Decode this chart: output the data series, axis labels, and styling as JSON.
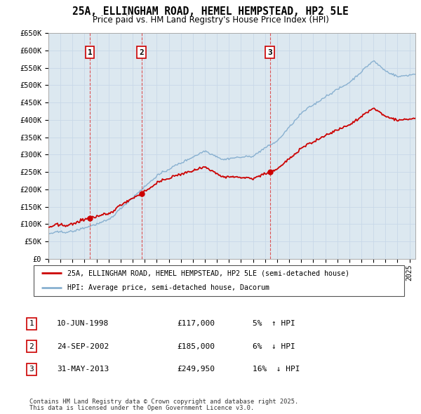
{
  "title": "25A, ELLINGHAM ROAD, HEMEL HEMPSTEAD, HP2 5LE",
  "subtitle": "Price paid vs. HM Land Registry's House Price Index (HPI)",
  "ylim": [
    0,
    650000
  ],
  "yticks": [
    0,
    50000,
    100000,
    150000,
    200000,
    250000,
    300000,
    350000,
    400000,
    450000,
    500000,
    550000,
    600000,
    650000
  ],
  "ytick_labels": [
    "£0",
    "£50K",
    "£100K",
    "£150K",
    "£200K",
    "£250K",
    "£300K",
    "£350K",
    "£400K",
    "£450K",
    "£500K",
    "£550K",
    "£600K",
    "£650K"
  ],
  "xlim": [
    1995,
    2025.5
  ],
  "sales": [
    {
      "label": "1",
      "date": "10-JUN-1998",
      "year": 1998.44,
      "price": 117000,
      "price_str": "£117,000",
      "pct": "5%",
      "dir": "↑"
    },
    {
      "label": "2",
      "date": "24-SEP-2002",
      "year": 2002.73,
      "price": 185000,
      "price_str": "£185,000",
      "pct": "6%",
      "dir": "↓"
    },
    {
      "label": "3",
      "date": "31-MAY-2013",
      "year": 2013.41,
      "price": 249950,
      "price_str": "£249,950",
      "pct": "16%",
      "dir": "↓"
    }
  ],
  "red_line_color": "#cc0000",
  "blue_line_color": "#88b0d0",
  "dot_color": "#cc0000",
  "grid_color": "#c8d8e8",
  "chart_bg_color": "#dce8f0",
  "background_color": "#ffffff",
  "vline_color": "#dd4444",
  "legend_label_red": "25A, ELLINGHAM ROAD, HEMEL HEMPSTEAD, HP2 5LE (semi-detached house)",
  "legend_label_blue": "HPI: Average price, semi-detached house, Dacorum",
  "footer1": "Contains HM Land Registry data © Crown copyright and database right 2025.",
  "footer2": "This data is licensed under the Open Government Licence v3.0."
}
